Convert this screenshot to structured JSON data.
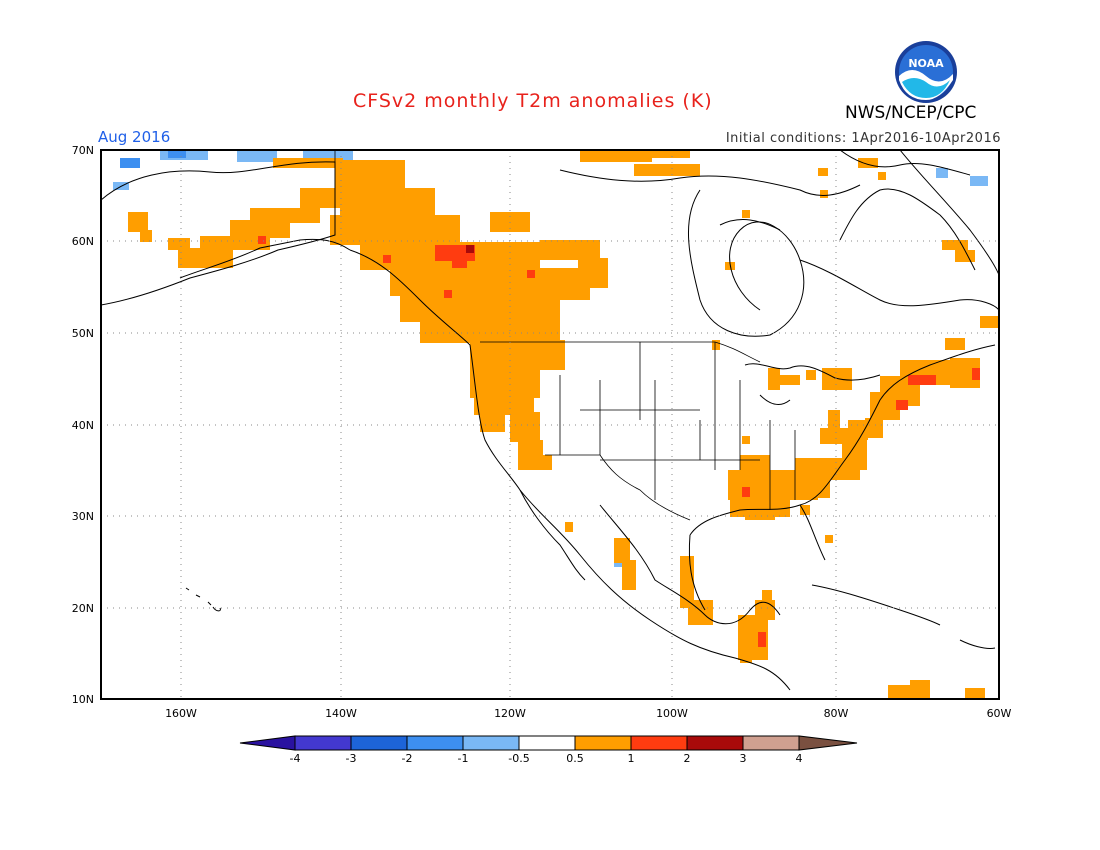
{
  "header": {
    "title": "CFSv2 monthly T2m anomalies (K)",
    "valid_month": "Aug 2016",
    "initial_conditions": "Initial conditions: 1Apr2016-10Apr2016",
    "agency": "NWS/NCEP/CPC"
  },
  "logo": {
    "text": "NOAA"
  },
  "map": {
    "lon_range": [
      -172,
      -60
    ],
    "lat_range": [
      10,
      70
    ],
    "lon_ticks": [
      "160W",
      "140W",
      "120W",
      "100W",
      "80W",
      "60W"
    ],
    "lat_ticks": [
      "70N",
      "60N",
      "50N",
      "40N",
      "30N",
      "20N",
      "10N"
    ],
    "grid": "dotted",
    "region": "North America"
  },
  "colorbar": {
    "labels": [
      "-4",
      "-3",
      "-2",
      "-1",
      "-0.5",
      "0.5",
      "1",
      "2",
      "3",
      "4"
    ],
    "colors": [
      "#2a12a0",
      "#4338cf",
      "#1d64d8",
      "#3d8ff0",
      "#7ab8f5",
      "#ffffff",
      "#ff9e00",
      "#ff3c10",
      "#a80a0a",
      "#d0a090",
      "#7a5040"
    ]
  },
  "anomaly_colors": {
    "weak_warm": "#ff9e00",
    "moderate_warm": "#ff3c10",
    "strong_warm": "#a80a0a",
    "weak_cool": "#7ab8f5",
    "moderate_cool": "#3d8ff0",
    "strong_cool": "#1d64d8"
  }
}
